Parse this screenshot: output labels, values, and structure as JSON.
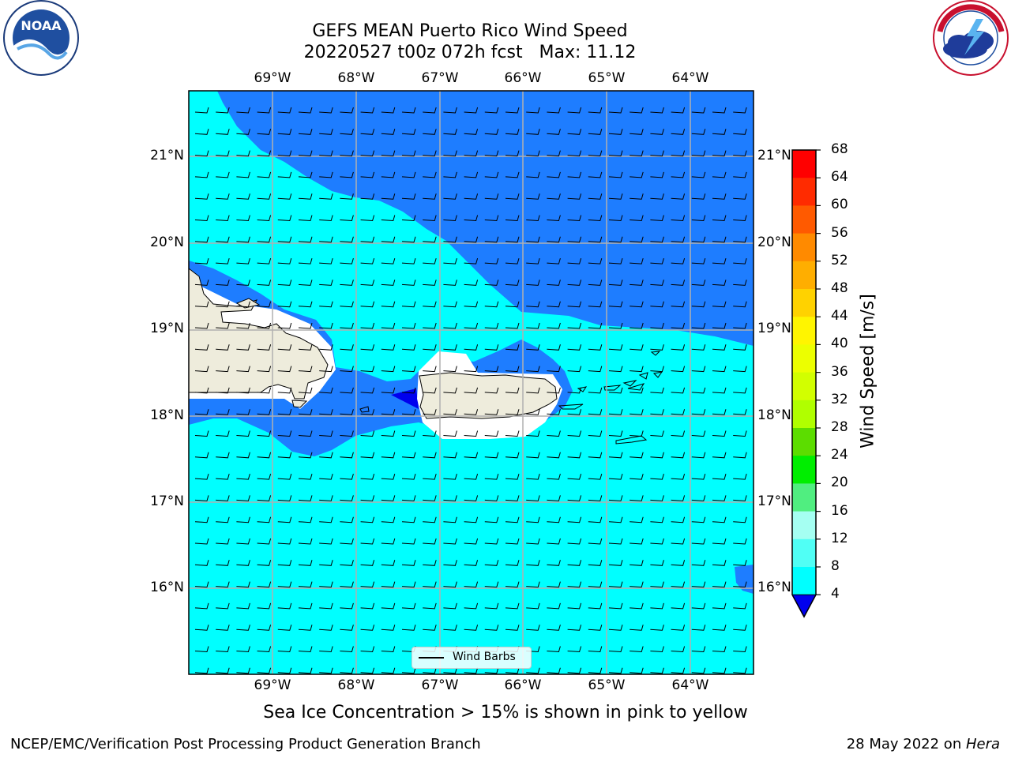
{
  "title": {
    "line1": "GEFS MEAN Puerto Rico Wind Speed",
    "line2": "20220527 t00z 072h fcst   Max: 11.12"
  },
  "subtitle": "Sea Ice Concentration > 15% is shown in pink to yellow",
  "footer": {
    "left": "NCEP/EMC/Verification Post Processing Product Generation Branch",
    "right_date": "28 May 2022 on ",
    "right_machine": "Hera"
  },
  "logos": {
    "noaa": "NOAA",
    "noaa_ring_text": "NATIONAL OCEANIC AND ATMOSPHERIC ADMINISTRATION · U.S. DEPARTMENT OF COMMERCE",
    "nws_ring_text": "NATIONAL WEATHER SERVICE"
  },
  "map": {
    "lon_labels": [
      "69°W",
      "68°W",
      "67°W",
      "66°W",
      "65°W",
      "64°W"
    ],
    "lat_labels": [
      "21°N",
      "20°N",
      "19°N",
      "18°N",
      "17°N",
      "16°N"
    ],
    "legend_label": "Wind Barbs",
    "colors": {
      "land": "#eeecdc",
      "c4_8": "#1e7dff",
      "c8_12": "#00ffff",
      "below4": "#0000ee",
      "grid": "#b0b0b0"
    }
  },
  "colorbar": {
    "label": "Wind Speed [m/s]",
    "ticks": [
      "68",
      "64",
      "60",
      "56",
      "52",
      "48",
      "44",
      "40",
      "36",
      "32",
      "28",
      "24",
      "20",
      "16",
      "12",
      "8",
      "4"
    ],
    "colors": [
      "#ff0000",
      "#ff2b00",
      "#ff5a00",
      "#ff8a00",
      "#ffae00",
      "#ffd200",
      "#fff500",
      "#ecff00",
      "#d2ff00",
      "#b0ff00",
      "#5cdd00",
      "#00ee00",
      "#50ee80",
      "#a5fff2",
      "#50fff5",
      "#00ffff",
      "#1e7dff"
    ],
    "extend_color": "#0000ee"
  }
}
